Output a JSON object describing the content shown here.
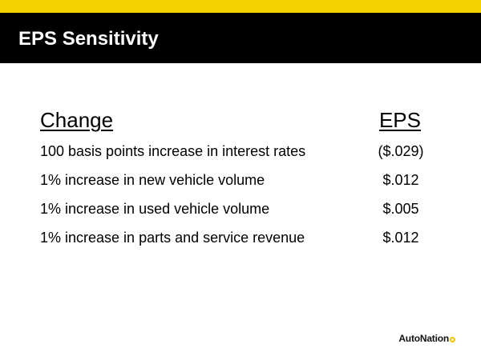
{
  "slide": {
    "title": "EPS Sensitivity"
  },
  "table": {
    "headers": {
      "change": "Change",
      "eps": "EPS"
    },
    "rows": [
      {
        "change": "100 basis points increase in interest rates",
        "eps": "($.029)"
      },
      {
        "change": "1% increase in new vehicle volume",
        "eps": "$.012"
      },
      {
        "change": "1% increase in used vehicle volume",
        "eps": "$.005"
      },
      {
        "change": "1% increase in parts and service revenue",
        "eps": "$.012"
      }
    ]
  },
  "logo": {
    "text": "AutoNation"
  },
  "colors": {
    "accent_yellow": "#f5d000",
    "title_bar": "#000000",
    "title_text": "#ffffff",
    "body_text": "#000000"
  }
}
